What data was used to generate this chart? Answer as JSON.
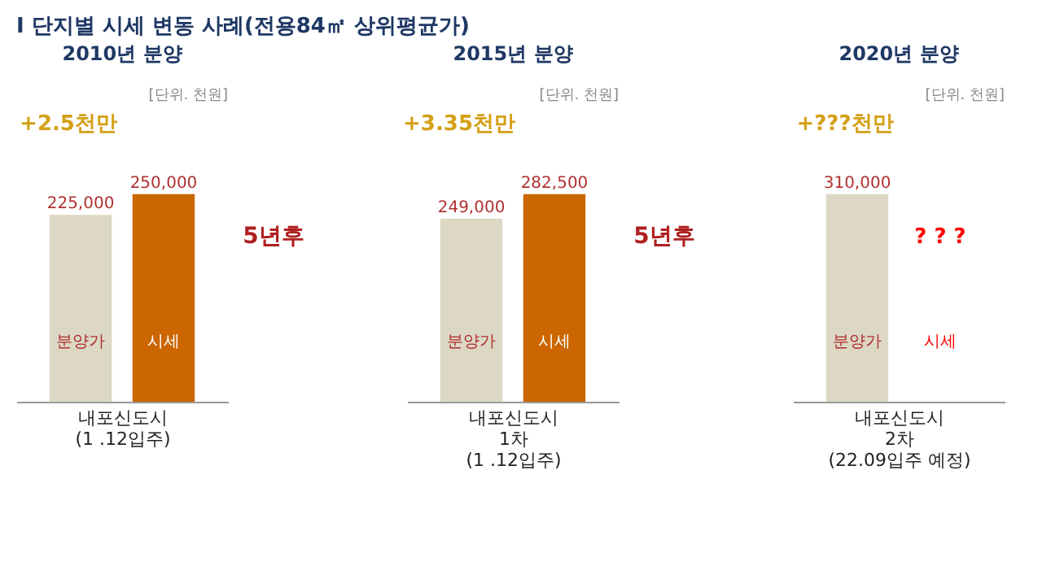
{
  "chart_data": [
    {
      "type": "bar",
      "title": "2010년 분양",
      "xlabel": "내포신도시\n(1 .12입주)",
      "categories": [
        "분양가",
        "시세"
      ],
      "values": [
        225000,
        250000
      ],
      "colors": [
        "#dcd8c4",
        "#cc6600"
      ],
      "value_labels": [
        "225,000",
        "250,000"
      ],
      "annotations": [
        "I 단지별 시세 변동 사례(전용84㎡ 상위평균가)",
        "[단위. 천원]",
        "+2.5천만",
        "5년후"
      ]
    },
    {
      "type": "bar",
      "title": "2015년 분양",
      "xlabel": "내포신도시\n1차\n(1 .12입주)",
      "categories": [
        "분양가",
        "시세"
      ],
      "values": [
        249000,
        282500
      ],
      "colors": [
        "#dcd8c4",
        "#cc6600"
      ],
      "value_labels": [
        "249,000",
        "282,500"
      ],
      "annotations": [
        "[단위. 천원]",
        "+3.35천만",
        "5년후"
      ]
    },
    {
      "type": "bar",
      "title": "2020년 분양",
      "xlabel": "내포신도시\n2차\n(22.09입주 예정)",
      "categories": [
        "분양가",
        "시세"
      ],
      "values": [
        310000,
        null
      ],
      "colors": [
        "#dcd8c4",
        "#ff0000"
      ],
      "value_labels": [
        "310,000",
        null
      ],
      "annotations": [
        "[단위. 천원]",
        "+???천만",
        "? ? ?"
      ]
    }
  ]
}
